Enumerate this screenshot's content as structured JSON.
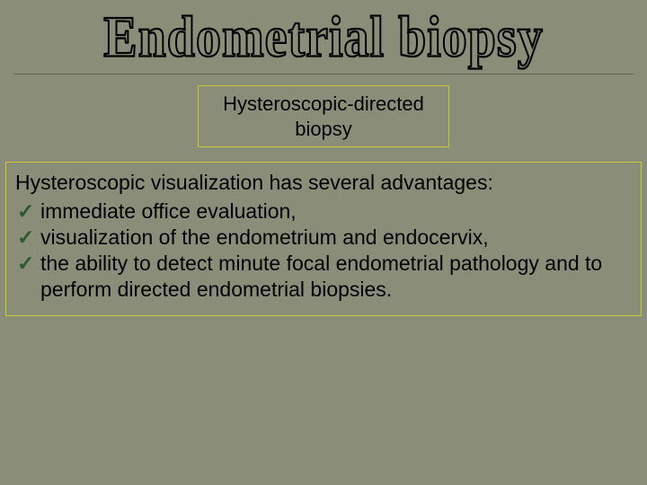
{
  "colors": {
    "background": "#8a8e78",
    "title_stroke": "#000000",
    "title_fill": "#8a8e78",
    "box_border": "#c9c838",
    "check_color": "#2e5b2e",
    "text_color": "#000000",
    "divider_color": "#5f6354"
  },
  "title": {
    "text": "Endometrial biopsy",
    "fontsize": 56,
    "font_family": "Times New Roman"
  },
  "subtitle": {
    "text": "Hysteroscopic-directed biopsy",
    "fontsize": 22
  },
  "content": {
    "heading": "Hysteroscopic visualization has several advantages:",
    "heading_fontsize": 23,
    "items": [
      {
        "check": "✓",
        "text": "immediate office evaluation,"
      },
      {
        "check": "✓",
        "text": "visualization of the endometrium and endocervix,"
      },
      {
        "check": "✓",
        "text": "the ability to detect minute focal endometrial pathology and to perform directed endometrial biopsies."
      }
    ],
    "item_fontsize": 23
  }
}
